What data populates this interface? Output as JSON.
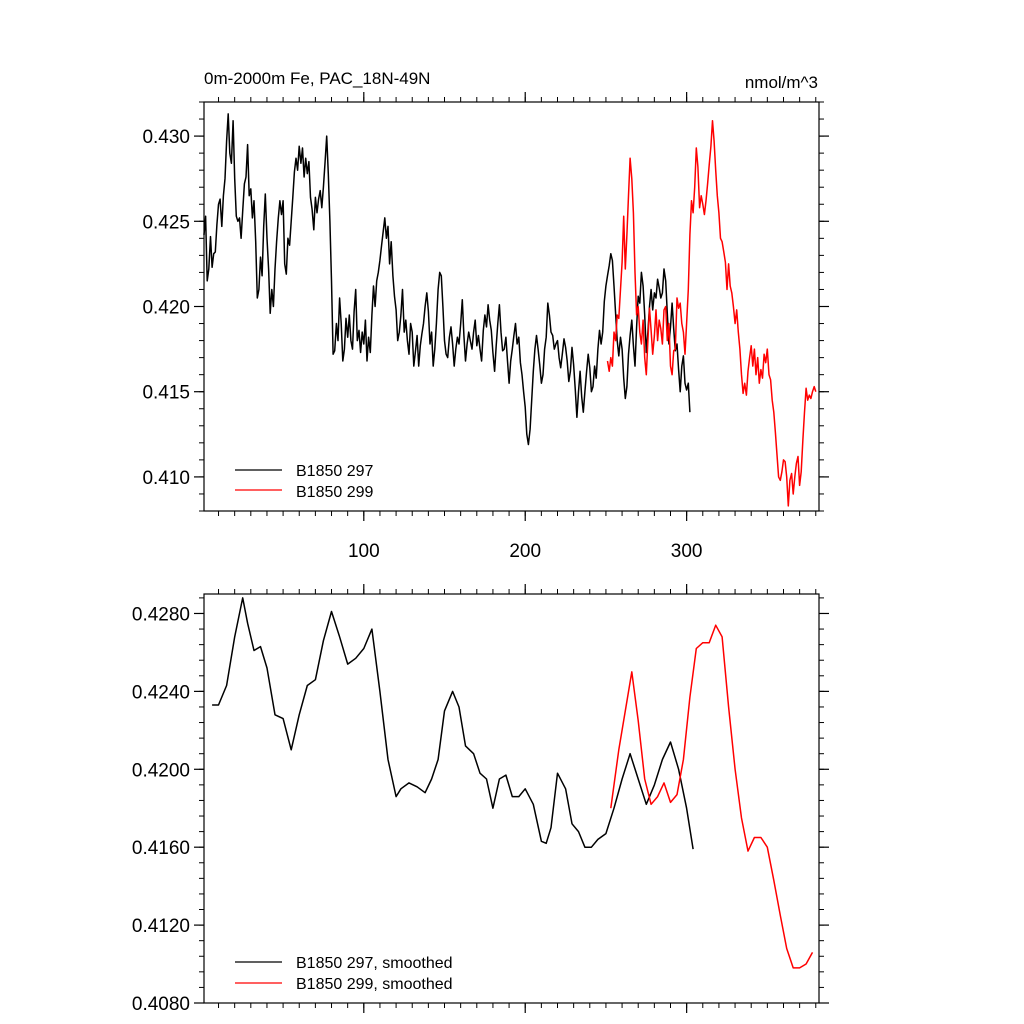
{
  "chart_data": [
    {
      "type": "line",
      "title": "0m-2000m Fe, PAC_18N-49N",
      "title_right": "nmol/m^3",
      "xlim": [
        1,
        382
      ],
      "ylim": [
        0.408,
        0.432
      ],
      "xticks": [
        100,
        200,
        300
      ],
      "yticks": [
        0.41,
        0.415,
        0.42,
        0.425,
        0.43
      ],
      "ytick_labels": [
        "0.410",
        "0.415",
        "0.420",
        "0.425",
        "0.430"
      ],
      "legend_position": "bottom-left",
      "series": [
        {
          "name": "B1850 297",
          "color": "#000000",
          "x_start": 1,
          "values": [
            0.4242,
            0.4253,
            0.4215,
            0.4222,
            0.4241,
            0.4223,
            0.4231,
            0.4232,
            0.4248,
            0.426,
            0.4263,
            0.4247,
            0.4265,
            0.4275,
            0.4297,
            0.4313,
            0.429,
            0.4284,
            0.4309,
            0.4275,
            0.4253,
            0.425,
            0.4252,
            0.424,
            0.4256,
            0.4272,
            0.4276,
            0.4295,
            0.4265,
            0.4269,
            0.4252,
            0.4262,
            0.4238,
            0.4205,
            0.421,
            0.4229,
            0.4218,
            0.4247,
            0.4266,
            0.424,
            0.4222,
            0.4196,
            0.421,
            0.42,
            0.4222,
            0.4238,
            0.4252,
            0.4262,
            0.4254,
            0.4262,
            0.4225,
            0.4219,
            0.424,
            0.4236,
            0.425,
            0.4264,
            0.4279,
            0.4287,
            0.428,
            0.4294,
            0.4284,
            0.4293,
            0.4276,
            0.4287,
            0.4278,
            0.4285,
            0.4264,
            0.4257,
            0.4245,
            0.4264,
            0.4255,
            0.4263,
            0.4268,
            0.4258,
            0.427,
            0.4285,
            0.43,
            0.4278,
            0.425,
            0.4215,
            0.4172,
            0.4174,
            0.419,
            0.418,
            0.4205,
            0.419,
            0.4168,
            0.4175,
            0.4193,
            0.4182,
            0.4195,
            0.418,
            0.4175,
            0.4197,
            0.421,
            0.418,
            0.4186,
            0.4173,
            0.4185,
            0.4178,
            0.4192,
            0.4168,
            0.4182,
            0.4173,
            0.4195,
            0.4212,
            0.42,
            0.4215,
            0.422,
            0.4227,
            0.4236,
            0.4244,
            0.4252,
            0.424,
            0.4247,
            0.4225,
            0.4238,
            0.4218,
            0.4206,
            0.4198,
            0.418,
            0.4185,
            0.4195,
            0.421,
            0.4185,
            0.4192,
            0.418,
            0.4172,
            0.419,
            0.4185,
            0.4165,
            0.4174,
            0.4183,
            0.4165,
            0.4177,
            0.4184,
            0.419,
            0.42,
            0.4208,
            0.4197,
            0.4178,
            0.4185,
            0.4165,
            0.4175,
            0.419,
            0.421,
            0.422,
            0.4218,
            0.42,
            0.418,
            0.4172,
            0.417,
            0.4182,
            0.4188,
            0.4178,
            0.4165,
            0.4175,
            0.4182,
            0.4178,
            0.419,
            0.4204,
            0.4183,
            0.4168,
            0.4178,
            0.4185,
            0.418,
            0.4175,
            0.4185,
            0.4192,
            0.4177,
            0.4183,
            0.4175,
            0.4168,
            0.4186,
            0.4195,
            0.4188,
            0.4201,
            0.4192,
            0.4186,
            0.4173,
            0.4162,
            0.4177,
            0.419,
            0.4201,
            0.4185,
            0.4174,
            0.4175,
            0.4182,
            0.4168,
            0.4155,
            0.4168,
            0.4175,
            0.4183,
            0.419,
            0.4178,
            0.4182,
            0.4167,
            0.416,
            0.415,
            0.4141,
            0.4125,
            0.4119,
            0.4128,
            0.4145,
            0.4162,
            0.4175,
            0.4183,
            0.4175,
            0.4166,
            0.4155,
            0.416,
            0.4175,
            0.4182,
            0.4202,
            0.4195,
            0.4185,
            0.4183,
            0.4175,
            0.4178,
            0.418,
            0.417,
            0.4164,
            0.4172,
            0.4181,
            0.4176,
            0.4168,
            0.4156,
            0.4162,
            0.4176,
            0.4166,
            0.4151,
            0.4135,
            0.415,
            0.4162,
            0.4147,
            0.4138,
            0.415,
            0.4162,
            0.4172,
            0.4164,
            0.415,
            0.4153,
            0.4165,
            0.4158,
            0.4175,
            0.4186,
            0.4178,
            0.4185,
            0.4203,
            0.4212,
            0.4218,
            0.4224,
            0.4231,
            0.4227,
            0.4212,
            0.4196,
            0.418,
            0.4171,
            0.4182,
            0.4175,
            0.4158,
            0.4146,
            0.4153,
            0.4172,
            0.4183,
            0.4192,
            0.4177,
            0.4165,
            0.4188,
            0.4206,
            0.4202,
            0.422,
            0.4212,
            0.4195,
            0.4173,
            0.4185,
            0.42,
            0.421,
            0.4198,
            0.4208,
            0.4205,
            0.4216,
            0.4211,
            0.4205,
            0.4208,
            0.4222,
            0.4215,
            0.4196,
            0.4178,
            0.4188,
            0.4202,
            0.4187,
            0.4174,
            0.4178,
            0.4163,
            0.415,
            0.4165,
            0.4171,
            0.4155,
            0.4151,
            0.4155,
            0.4138
          ]
        },
        {
          "name": "B1850 299",
          "color": "#ff0000",
          "x_start": 251,
          "values": [
            0.4168,
            0.4162,
            0.417,
            0.4165,
            0.4185,
            0.418,
            0.4195,
            0.4193,
            0.421,
            0.4226,
            0.4253,
            0.4222,
            0.4242,
            0.4265,
            0.4287,
            0.4275,
            0.4255,
            0.422,
            0.4195,
            0.42,
            0.4185,
            0.4178,
            0.4192,
            0.417,
            0.416,
            0.418,
            0.4199,
            0.4186,
            0.4172,
            0.4183,
            0.4198,
            0.418,
            0.4192,
            0.4187,
            0.4178,
            0.4198,
            0.42,
            0.418,
            0.419,
            0.4165,
            0.416,
            0.4174,
            0.4175,
            0.4205,
            0.4199,
            0.4202,
            0.419,
            0.4185,
            0.4172,
            0.419,
            0.421,
            0.4242,
            0.4262,
            0.4255,
            0.427,
            0.4293,
            0.4282,
            0.4258,
            0.4265,
            0.426,
            0.4254,
            0.4262,
            0.4272,
            0.4283,
            0.4294,
            0.4309,
            0.4297,
            0.428,
            0.4265,
            0.4255,
            0.424,
            0.4238,
            0.4232,
            0.4226,
            0.421,
            0.4225,
            0.4212,
            0.4208,
            0.42,
            0.419,
            0.4198,
            0.4185,
            0.4175,
            0.416,
            0.4149,
            0.4155,
            0.4148,
            0.4162,
            0.417,
            0.4177,
            0.4165,
            0.4175,
            0.416,
            0.417,
            0.4155,
            0.4163,
            0.4158,
            0.4172,
            0.4167,
            0.4175,
            0.416,
            0.4157,
            0.4145,
            0.4138,
            0.4126,
            0.4113,
            0.41,
            0.4098,
            0.4103,
            0.411,
            0.4109,
            0.41,
            0.4083,
            0.4098,
            0.4102,
            0.409,
            0.41,
            0.4108,
            0.4112,
            0.4095,
            0.4103,
            0.4122,
            0.4138,
            0.4152,
            0.4145,
            0.4148,
            0.4146,
            0.415,
            0.4153,
            0.415
          ]
        }
      ]
    },
    {
      "type": "line",
      "xlim": [
        1,
        382
      ],
      "ylim": [
        0.408,
        0.429
      ],
      "xticks": [
        100,
        200,
        300
      ],
      "yticks": [
        0.408,
        0.412,
        0.416,
        0.42,
        0.424,
        0.428
      ],
      "ytick_labels": [
        "0.4080",
        "0.4120",
        "0.4160",
        "0.4200",
        "0.4240",
        "0.4280"
      ],
      "legend_position": "bottom-left",
      "series": [
        {
          "name": "B1850 297, smoothed",
          "color": "#000000",
          "x": [
            6,
            10,
            15,
            20,
            25,
            28,
            32,
            36,
            40,
            45,
            50,
            55,
            60,
            65,
            70,
            75,
            80,
            85,
            90,
            95,
            100,
            105,
            110,
            115,
            120,
            123,
            128,
            133,
            138,
            142,
            146,
            150,
            155,
            159,
            163,
            168,
            172,
            176,
            180,
            184,
            188,
            192,
            196,
            200,
            205,
            210,
            213,
            216,
            220,
            225,
            229,
            233,
            237,
            241,
            245,
            250,
            255,
            260,
            265,
            270,
            275,
            280,
            285,
            290,
            295,
            300,
            304
          ],
          "values": [
            0.4233,
            0.4233,
            0.4243,
            0.4268,
            0.4288,
            0.4275,
            0.4261,
            0.4263,
            0.4252,
            0.4228,
            0.4226,
            0.421,
            0.4228,
            0.4243,
            0.4246,
            0.4266,
            0.4281,
            0.4268,
            0.4254,
            0.4257,
            0.4262,
            0.4272,
            0.424,
            0.4205,
            0.4186,
            0.419,
            0.4193,
            0.4191,
            0.4188,
            0.4195,
            0.4205,
            0.423,
            0.424,
            0.4232,
            0.4212,
            0.4208,
            0.4198,
            0.4195,
            0.418,
            0.4195,
            0.4197,
            0.4186,
            0.4186,
            0.419,
            0.4182,
            0.4163,
            0.4162,
            0.417,
            0.4198,
            0.419,
            0.4172,
            0.4168,
            0.416,
            0.416,
            0.4164,
            0.4167,
            0.418,
            0.4195,
            0.4208,
            0.4195,
            0.4182,
            0.4192,
            0.4205,
            0.4214,
            0.42,
            0.418,
            0.4159
          ]
        },
        {
          "name": "B1850 299, smoothed",
          "color": "#ff0000",
          "x": [
            253,
            258,
            262,
            266,
            270,
            274,
            278,
            282,
            286,
            290,
            294,
            298,
            302,
            306,
            310,
            314,
            318,
            322,
            326,
            330,
            334,
            338,
            342,
            346,
            350,
            354,
            358,
            362,
            366,
            370,
            374,
            378
          ],
          "values": [
            0.418,
            0.421,
            0.423,
            0.425,
            0.4225,
            0.4195,
            0.4182,
            0.4186,
            0.4193,
            0.4183,
            0.4187,
            0.4205,
            0.4237,
            0.4262,
            0.4265,
            0.4265,
            0.4274,
            0.4268,
            0.4232,
            0.42,
            0.4175,
            0.4158,
            0.4165,
            0.4165,
            0.416,
            0.4143,
            0.4125,
            0.4108,
            0.4098,
            0.4098,
            0.41,
            0.4106
          ]
        }
      ]
    }
  ]
}
